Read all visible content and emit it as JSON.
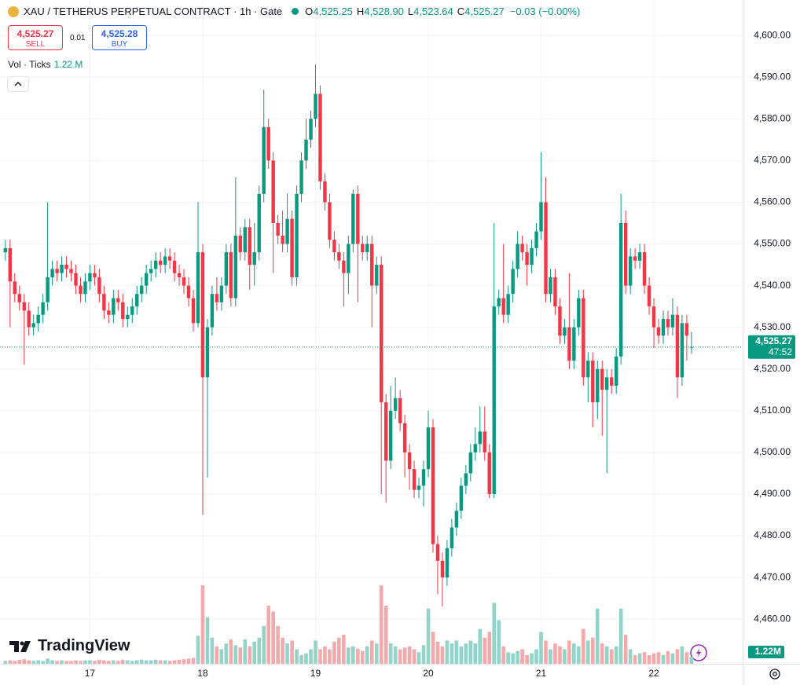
{
  "header": {
    "symbol": "XAU / TETHERUS PERPETUAL CONTRACT · 1h · Gate",
    "ohlc": [
      {
        "label": "O",
        "value": "4,525.25"
      },
      {
        "label": "H",
        "value": "4,528.90"
      },
      {
        "label": "L",
        "value": "4,523.64"
      },
      {
        "label": "C",
        "value": "4,525.27"
      }
    ],
    "change": "−0.03 (−0.00%)",
    "sell": {
      "price": "4,525.27",
      "label": "SELL"
    },
    "spread": "0.01",
    "buy": {
      "price": "4,525.28",
      "label": "BUY"
    },
    "indicator": "Vol · Ticks",
    "indicator_value": "1.22 M",
    "logo": "TradingView"
  },
  "chart_data": {
    "type": "candlestick",
    "categories": [
      null,
      null,
      null,
      null,
      null,
      null,
      null,
      null,
      null,
      null,
      null,
      null,
      null,
      null,
      null,
      null,
      null,
      null,
      "17",
      null,
      null,
      null,
      null,
      null,
      null,
      null,
      null,
      null,
      null,
      null,
      null,
      null,
      null,
      null,
      null,
      null,
      null,
      null,
      null,
      null,
      null,
      null,
      "18",
      null,
      null,
      null,
      null,
      null,
      null,
      null,
      null,
      null,
      null,
      null,
      null,
      null,
      null,
      null,
      null,
      null,
      null,
      null,
      null,
      null,
      null,
      null,
      "19",
      null,
      null,
      null,
      null,
      null,
      null,
      null,
      null,
      null,
      null,
      null,
      null,
      null,
      null,
      null,
      null,
      null,
      null,
      null,
      null,
      null,
      null,
      null,
      "20",
      null,
      null,
      null,
      null,
      null,
      null,
      null,
      null,
      null,
      null,
      null,
      null,
      null,
      null,
      null,
      null,
      null,
      null,
      null,
      null,
      null,
      null,
      null,
      "21",
      null,
      null,
      null,
      null,
      null,
      null,
      null,
      null,
      null,
      null,
      null,
      null,
      null,
      null,
      null,
      null,
      null,
      null,
      null,
      null,
      null,
      null,
      null,
      "22",
      null,
      null,
      null,
      null,
      null,
      null,
      null,
      null
    ],
    "open": [
      4548,
      4549,
      4541,
      4538,
      4536,
      4534,
      4530,
      4531,
      4533,
      4536,
      4542,
      4544,
      4543,
      4545,
      4544,
      4543,
      4540,
      4538,
      4541,
      4543,
      4542,
      4538,
      4534,
      4533,
      4537,
      4536,
      4532,
      4533,
      4535,
      4538,
      4540,
      4543,
      4544,
      4546,
      4545,
      4547,
      4546,
      4543,
      4542,
      4540,
      4537,
      4531,
      4548,
      4518,
      4530,
      4538,
      4536,
      4540,
      4548,
      4537,
      4552,
      4548,
      4554,
      4545,
      4548,
      4562,
      4578,
      4570,
      4555,
      4552,
      4550,
      4556,
      4542,
      4562,
      4570,
      4575,
      4580,
      4586,
      4565,
      4560,
      4551,
      4548,
      4546,
      4543,
      4550,
      4562,
      4550,
      4548,
      4550,
      4540,
      4545,
      4512,
      4498,
      4510,
      4513,
      4507,
      4500,
      4496,
      4491,
      4492,
      4496,
      4506,
      4478,
      4474,
      4470,
      4477,
      4482,
      4486,
      4492,
      4495,
      4500,
      4502,
      4505,
      4500,
      4490,
      4535,
      4537,
      4533,
      4538,
      4544,
      4550,
      4548,
      4545,
      4549,
      4553,
      4560,
      4538,
      4542,
      4535,
      4528,
      4530,
      4522,
      4530,
      4537,
      4518,
      4522,
      4512,
      4520,
      4515,
      4518,
      4516,
      4523,
      4555,
      4540,
      4547,
      4546,
      4548,
      4540,
      4535,
      4530,
      4528,
      4532,
      4530,
      4533,
      4518,
      4531,
      4525.25
    ],
    "high": [
      4551,
      4551,
      4543,
      4540,
      4538,
      4536,
      4533,
      4535,
      4538,
      4560,
      4546,
      4546,
      4547,
      4547,
      4546,
      4545,
      4542,
      4543,
      4545,
      4545,
      4544,
      4540,
      4536,
      4539,
      4539,
      4538,
      4535,
      4537,
      4540,
      4542,
      4545,
      4546,
      4548,
      4548,
      4549,
      4549,
      4548,
      4545,
      4544,
      4542,
      4539,
      4560,
      4550,
      4532,
      4540,
      4542,
      4542,
      4550,
      4550,
      4566,
      4554,
      4556,
      4556,
      4555,
      4564,
      4587,
      4580,
      4572,
      4557,
      4558,
      4562,
      4558,
      4564,
      4572,
      4580,
      4582,
      4593,
      4588,
      4567,
      4562,
      4553,
      4550,
      4548,
      4552,
      4563,
      4564,
      4552,
      4552,
      4552,
      4547,
      4547,
      4514,
      4516,
      4518,
      4515,
      4509,
      4502,
      4498,
      4494,
      4498,
      4510,
      4508,
      4480,
      4476,
      4479,
      4484,
      4488,
      4494,
      4497,
      4502,
      4506,
      4511,
      4511,
      4502,
      4555,
      4539,
      4550,
      4540,
      4546,
      4553,
      4552,
      4550,
      4551,
      4555,
      4572,
      4566,
      4544,
      4544,
      4537,
      4532,
      4543,
      4532,
      4539,
      4539,
      4524,
      4524,
      4522,
      4522,
      4520,
      4520,
      4525,
      4562,
      4558,
      4549,
      4549,
      4550,
      4550,
      4542,
      4537,
      4532,
      4534,
      4534,
      4537,
      4535,
      4533,
      4533,
      4528.9
    ],
    "low": [
      4546,
      4530,
      4536,
      4534,
      4521,
      4528,
      4528,
      4529,
      4531,
      4534,
      4540,
      4541,
      4541,
      4542,
      4541,
      4538,
      4536,
      4536,
      4539,
      4540,
      4536,
      4532,
      4531,
      4531,
      4534,
      4530,
      4530,
      4531,
      4533,
      4536,
      4538,
      4541,
      4542,
      4543,
      4543,
      4544,
      4541,
      4540,
      4538,
      4535,
      4529,
      4530,
      4485,
      4494,
      4528,
      4534,
      4534,
      4538,
      4535,
      4535,
      4546,
      4546,
      4539,
      4540,
      4546,
      4560,
      4568,
      4543,
      4550,
      4548,
      4548,
      4540,
      4540,
      4560,
      4568,
      4573,
      4578,
      4563,
      4558,
      4549,
      4546,
      4544,
      4535,
      4538,
      4548,
      4536,
      4546,
      4546,
      4530,
      4538,
      4490,
      4488,
      4496,
      4508,
      4505,
      4494,
      4491,
      4489,
      4489,
      4487,
      4494,
      4476,
      4466,
      4463,
      4468,
      4475,
      4480,
      4484,
      4490,
      4493,
      4498,
      4500,
      4498,
      4489,
      4489,
      4533,
      4531,
      4531,
      4536,
      4542,
      4546,
      4540,
      4543,
      4547,
      4551,
      4536,
      4536,
      4533,
      4526,
      4526,
      4520,
      4520,
      4528,
      4516,
      4512,
      4506,
      4508,
      4504,
      4495,
      4514,
      4514,
      4521,
      4538,
      4538,
      4544,
      4544,
      4538,
      4533,
      4525,
      4526,
      4526,
      4528,
      4528,
      4513,
      4516,
      4522,
      4523.64
    ],
    "close": [
      4549,
      4541,
      4538,
      4536,
      4534,
      4530,
      4531,
      4533,
      4536,
      4542,
      4544,
      4543,
      4545,
      4544,
      4543,
      4540,
      4538,
      4541,
      4543,
      4542,
      4538,
      4534,
      4533,
      4537,
      4536,
      4532,
      4533,
      4535,
      4538,
      4540,
      4543,
      4544,
      4546,
      4545,
      4547,
      4546,
      4543,
      4542,
      4540,
      4537,
      4531,
      4548,
      4518,
      4530,
      4538,
      4536,
      4540,
      4548,
      4537,
      4552,
      4548,
      4554,
      4545,
      4548,
      4562,
      4578,
      4570,
      4555,
      4552,
      4550,
      4556,
      4542,
      4562,
      4570,
      4575,
      4580,
      4586,
      4565,
      4560,
      4551,
      4548,
      4546,
      4543,
      4550,
      4562,
      4550,
      4548,
      4550,
      4540,
      4545,
      4512,
      4498,
      4510,
      4513,
      4507,
      4500,
      4496,
      4491,
      4492,
      4496,
      4506,
      4478,
      4474,
      4470,
      4477,
      4482,
      4486,
      4492,
      4495,
      4500,
      4502,
      4505,
      4500,
      4490,
      4535,
      4537,
      4533,
      4538,
      4544,
      4550,
      4548,
      4545,
      4549,
      4553,
      4560,
      4538,
      4542,
      4535,
      4528,
      4530,
      4522,
      4530,
      4537,
      4518,
      4522,
      4512,
      4520,
      4515,
      4518,
      4516,
      4523,
      4555,
      4540,
      4547,
      4546,
      4548,
      4540,
      4535,
      4530,
      4528,
      4532,
      4530,
      4533,
      4518,
      4531,
      4528,
      4525.27
    ],
    "volume": [
      0.5,
      0.6,
      0.5,
      0.7,
      0.8,
      0.6,
      0.5,
      0.6,
      0.5,
      0.9,
      0.6,
      0.5,
      0.6,
      0.5,
      0.5,
      0.6,
      0.5,
      0.6,
      0.6,
      0.5,
      0.7,
      0.6,
      0.5,
      0.6,
      0.5,
      0.7,
      0.6,
      0.5,
      0.6,
      0.7,
      0.6,
      0.6,
      0.7,
      0.6,
      0.6,
      0.5,
      0.6,
      0.7,
      0.8,
      0.9,
      1.0,
      4.8,
      13.5,
      8.0,
      4.5,
      3.0,
      2.5,
      3.5,
      4.2,
      3.2,
      2.8,
      4.2,
      3.0,
      3.8,
      4.5,
      6.5,
      10.0,
      9.0,
      6.5,
      4.5,
      3.5,
      4.0,
      2.5,
      1.5,
      1.8,
      2.5,
      4.0,
      2.5,
      3.0,
      2.5,
      3.8,
      4.5,
      5.0,
      2.8,
      3.0,
      2.6,
      2.2,
      3.0,
      4.0,
      3.5,
      13.5,
      10.0,
      3.5,
      3.0,
      2.5,
      2.8,
      3.0,
      2.5,
      2.0,
      3.2,
      9.5,
      5.5,
      3.8,
      3.0,
      4.0,
      3.5,
      4.0,
      3.0,
      3.5,
      4.0,
      3.5,
      6.0,
      4.5,
      5.5,
      10.5,
      7.5,
      3.0,
      2.0,
      1.8,
      2.2,
      2.5,
      1.5,
      1.8,
      2.5,
      5.5,
      4.0,
      2.5,
      3.5,
      3.0,
      2.5,
      4.0,
      3.5,
      3.0,
      6.0,
      4.0,
      4.5,
      9.5,
      3.5,
      3.0,
      2.5,
      3.0,
      9.5,
      5.0,
      2.5,
      1.5,
      1.8,
      2.0,
      1.5,
      1.8,
      2.0,
      1.5,
      2.2,
      1.8,
      2.5,
      3.0,
      2.0,
      1.22
    ],
    "volume_lim": [
      0,
      14.2
    ],
    "volume_label": "1.22M",
    "up_color": "#089981",
    "down_color": "#f23645",
    "volume_up_color": "#93d4c9",
    "volume_down_color": "#f6a9ab",
    "ylim": [
      4449.3,
      4608.5
    ],
    "yticks": [
      {
        "value": 4460,
        "label": "4,460.00"
      },
      {
        "value": 4470,
        "label": "4,470.00"
      },
      {
        "value": 4480,
        "label": "4,480.00"
      },
      {
        "value": 4490,
        "label": "4,490.00"
      },
      {
        "value": 4500,
        "label": "4,500.00"
      },
      {
        "value": 4510,
        "label": "4,510.00"
      },
      {
        "value": 4520,
        "label": "4,520.00"
      },
      {
        "value": 4530,
        "label": "4,530.00"
      },
      {
        "value": 4540,
        "label": "4,540.00"
      },
      {
        "value": 4550,
        "label": "4,550.00"
      },
      {
        "value": 4560,
        "label": "4,560.00"
      },
      {
        "value": 4570,
        "label": "4,570.00"
      },
      {
        "value": 4580,
        "label": "4,580.00"
      },
      {
        "value": 4590,
        "label": "4,590.00"
      },
      {
        "value": 4600,
        "label": "4,600.00"
      }
    ],
    "grid": true,
    "last_price": {
      "value": 4525.27,
      "label": "4,525.27"
    },
    "countdown": "47:52"
  }
}
